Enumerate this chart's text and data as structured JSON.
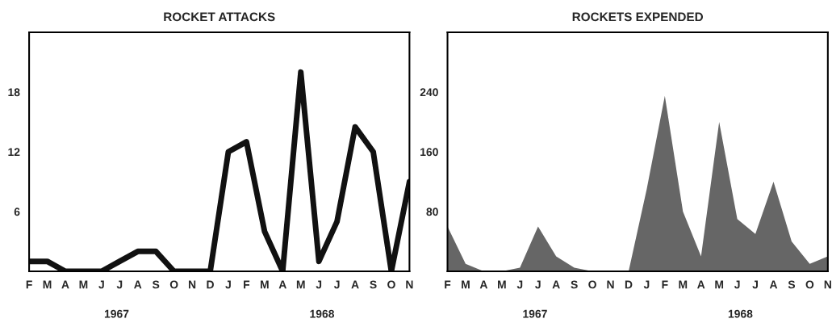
{
  "chart_data": [
    {
      "type": "line",
      "title": "ROCKET ATTACKS",
      "categories": [
        "F",
        "M",
        "A",
        "M",
        "J",
        "J",
        "A",
        "S",
        "O",
        "N",
        "D",
        "J",
        "F",
        "M",
        "A",
        "M",
        "J",
        "J",
        "A",
        "S",
        "O",
        "N"
      ],
      "series": [
        {
          "color": "#111111",
          "values": [
            1,
            1,
            0,
            0,
            0,
            1,
            2,
            2,
            0,
            0,
            0,
            12,
            13,
            4,
            0,
            20,
            1,
            5,
            14.5,
            12,
            0,
            9
          ]
        }
      ],
      "ylim": [
        0,
        24
      ],
      "yticks": [
        6,
        12,
        18
      ],
      "grid": false,
      "annotations": [
        "1967",
        "1968"
      ]
    },
    {
      "type": "area",
      "title": "ROCKETS EXPENDED",
      "categories": [
        "F",
        "M",
        "A",
        "M",
        "J",
        "J",
        "A",
        "S",
        "O",
        "N",
        "D",
        "J",
        "F",
        "M",
        "A",
        "M",
        "J",
        "J",
        "A",
        "S",
        "O",
        "N"
      ],
      "series": [
        {
          "color": "#666666",
          "values": [
            60,
            10,
            0,
            0,
            5,
            60,
            20,
            5,
            0,
            0,
            0,
            110,
            235,
            80,
            20,
            200,
            70,
            50,
            120,
            40,
            10,
            20
          ]
        }
      ],
      "ylim": [
        0,
        320
      ],
      "yticks": [
        80,
        160,
        240
      ],
      "grid": false,
      "annotations": [
        "1967",
        "1968"
      ]
    }
  ]
}
